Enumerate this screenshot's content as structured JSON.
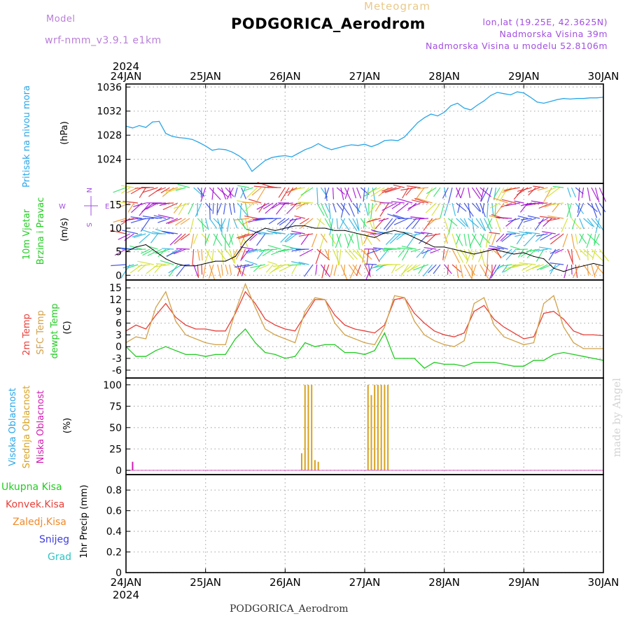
{
  "header": {
    "model_label": "Model",
    "model_name": "wrf-nmm_v3.9.1 e1km",
    "meteogram_label": "Meteogram",
    "station_title": "PODGORICA_Aerodrom",
    "coords_line": "lon,lat (19.25E, 42.3625N)",
    "elevation_line": "Nadmorska Visina 39m",
    "model_elevation_line": "Nadmorska Visina u modelu 52.8106m"
  },
  "footer": {
    "station_title": "PODGORICA_Aerodrom",
    "credit": "made by Angel"
  },
  "colors": {
    "pressure": "#2aa6e8",
    "temp2m": "#e8403a",
    "sfc_temp": "#d2a24a",
    "dewpt": "#22cc22",
    "wind_speed": "#000000",
    "mid_cloud": "#d8a21e",
    "low_cloud": "#d11bb0",
    "high_cloud": "#2aa6e8",
    "grid": "#b4b4b4"
  },
  "chart_data": [
    {
      "type": "line",
      "name": "pressure-panel",
      "ylabel_main": "Pritisak na nivou mora",
      "ylabel_unit": "(hPa)",
      "year_label": "2024",
      "x_tick_labels": [
        "24JAN",
        "25JAN",
        "26JAN",
        "27JAN",
        "28JAN",
        "29JAN",
        "30JAN"
      ],
      "yticks": [
        1024,
        1028,
        1032,
        1036
      ],
      "ylim": [
        1020,
        1036.5
      ],
      "xlim": [
        0,
        144
      ],
      "grid": true,
      "series": [
        {
          "name": "",
          "x": [
            0,
            2,
            4,
            6,
            8,
            10,
            12,
            14,
            16,
            18,
            20,
            22,
            24,
            26,
            28,
            30,
            32,
            34,
            36,
            38,
            40,
            42,
            44,
            46,
            48,
            50,
            52,
            54,
            56,
            58,
            60,
            62,
            64,
            66,
            68,
            70,
            72,
            74,
            76,
            78,
            80,
            82,
            84,
            86,
            88,
            90,
            92,
            94,
            96,
            98,
            100,
            102,
            104,
            106,
            108,
            110,
            112,
            114,
            116,
            118,
            120,
            122,
            124,
            126,
            128,
            130,
            132,
            134,
            136,
            138,
            140,
            142,
            144
          ],
          "values": [
            1029.5,
            1029.2,
            1029.6,
            1029.3,
            1030.2,
            1030.3,
            1028.3,
            1027.8,
            1027.6,
            1027.5,
            1027.3,
            1026.8,
            1026.2,
            1025.5,
            1025.7,
            1025.6,
            1025.2,
            1024.6,
            1023.8,
            1022.0,
            1022.9,
            1023.8,
            1024.3,
            1024.5,
            1024.6,
            1024.4,
            1025.0,
            1025.6,
            1026.0,
            1026.6,
            1026.0,
            1025.6,
            1025.9,
            1026.2,
            1026.4,
            1026.3,
            1026.5,
            1026.1,
            1026.5,
            1027.1,
            1027.2,
            1027.1,
            1027.7,
            1028.9,
            1030.1,
            1030.9,
            1031.5,
            1031.2,
            1031.8,
            1032.9,
            1033.3,
            1032.5,
            1032.2,
            1033.0,
            1033.7,
            1034.6,
            1035.1,
            1034.9,
            1034.7,
            1035.2,
            1035.0,
            1034.3,
            1033.5,
            1033.3,
            1033.6,
            1033.9,
            1034.1,
            1034.0,
            1034.1,
            1034.1,
            1034.2,
            1034.2,
            1034.3
          ]
        }
      ]
    },
    {
      "type": "line",
      "name": "wind-panel",
      "ylabel_main": "10m Vjetar",
      "ylabel_sub": "Brzina i Pravac",
      "ylabel_unit": "(m/s)",
      "compass": {
        "n": "N",
        "s": "S",
        "e": "E",
        "w": "W"
      },
      "yticks": [
        0,
        5,
        10,
        15
      ],
      "ylim": [
        -1,
        19.5
      ],
      "xlim": [
        0,
        144
      ],
      "grid": true,
      "series": [
        {
          "name": "",
          "x": [
            0,
            3,
            6,
            9,
            12,
            15,
            18,
            21,
            24,
            27,
            30,
            33,
            36,
            39,
            42,
            45,
            48,
            51,
            54,
            57,
            60,
            63,
            66,
            69,
            72,
            75,
            78,
            81,
            84,
            87,
            90,
            93,
            96,
            99,
            102,
            105,
            108,
            111,
            114,
            117,
            120,
            123,
            126,
            129,
            132,
            135,
            138,
            141,
            144
          ],
          "values": [
            5,
            6,
            6.5,
            5,
            3.5,
            2.5,
            2,
            2,
            2.5,
            3,
            3,
            4,
            7,
            9,
            10,
            9.5,
            10,
            10.5,
            10.5,
            10,
            10,
            9.5,
            9.5,
            9,
            8.5,
            8,
            9,
            9.5,
            9,
            8,
            7,
            6,
            6,
            5.5,
            5,
            4.5,
            5,
            5.5,
            5,
            4.5,
            4.8,
            4,
            3.5,
            1.5,
            0.8,
            1.5,
            2,
            2.5,
            2
          ]
        }
      ],
      "barb_colormap": [
        "#a000d0",
        "#2a40e0",
        "#20b0e0",
        "#20e060",
        "#d0e020",
        "#f09020",
        "#e02020"
      ]
    },
    {
      "type": "line",
      "name": "temperature-panel",
      "ylabel_lines": [
        "2m Temp",
        "SFC Temp",
        "dewpt Temp"
      ],
      "ylabel_unit": "(C)",
      "yticks": [
        -6,
        -3,
        0,
        3,
        6,
        9,
        12,
        15
      ],
      "ylim": [
        -8,
        17
      ],
      "xlim": [
        0,
        144
      ],
      "grid": true,
      "series": [
        {
          "name": "2m Temp",
          "x": [
            0,
            3,
            6,
            9,
            12,
            15,
            18,
            21,
            24,
            27,
            30,
            33,
            36,
            39,
            42,
            45,
            48,
            51,
            54,
            57,
            60,
            63,
            66,
            69,
            72,
            75,
            78,
            81,
            84,
            87,
            90,
            93,
            96,
            99,
            102,
            105,
            108,
            111,
            114,
            117,
            120,
            123,
            126,
            129,
            132,
            135,
            138,
            141,
            144
          ],
          "values": [
            4,
            5.5,
            4.5,
            8,
            11,
            7.5,
            5.5,
            4.5,
            4.5,
            4,
            4,
            8.5,
            14,
            11,
            7,
            5.5,
            4.5,
            4,
            8,
            12,
            12,
            8,
            5.5,
            4.5,
            4,
            3.5,
            5.5,
            12,
            12.5,
            8.5,
            6,
            4,
            3,
            2.5,
            3.5,
            9,
            10.5,
            7,
            5,
            3.5,
            2,
            2.5,
            8.5,
            9,
            7,
            4,
            3,
            3,
            2.8
          ]
        },
        {
          "name": "SFC Temp",
          "x": [
            0,
            3,
            6,
            9,
            12,
            15,
            18,
            21,
            24,
            27,
            30,
            33,
            36,
            39,
            42,
            45,
            48,
            51,
            54,
            57,
            60,
            63,
            66,
            69,
            72,
            75,
            78,
            81,
            84,
            87,
            90,
            93,
            96,
            99,
            102,
            105,
            108,
            111,
            114,
            117,
            120,
            123,
            126,
            129,
            132,
            135,
            138,
            141,
            144
          ],
          "values": [
            1,
            2.5,
            2,
            10,
            14,
            6.5,
            3,
            2,
            1,
            0.5,
            0.5,
            9,
            16,
            10,
            4.5,
            3,
            2,
            1,
            9,
            12.5,
            12,
            6,
            3,
            2,
            1,
            0.5,
            5,
            13,
            12.5,
            6.5,
            3,
            1.5,
            0.5,
            0,
            1.5,
            11,
            12.5,
            5.5,
            2.5,
            1.5,
            0.5,
            1,
            11,
            13,
            5,
            1,
            -0.5,
            -0.5,
            -0.5
          ]
        },
        {
          "name": "dewpt Temp",
          "x": [
            0,
            3,
            6,
            9,
            12,
            15,
            18,
            21,
            24,
            27,
            30,
            33,
            36,
            39,
            42,
            45,
            48,
            51,
            54,
            57,
            60,
            63,
            66,
            69,
            72,
            75,
            78,
            81,
            84,
            87,
            90,
            93,
            96,
            99,
            102,
            105,
            108,
            111,
            114,
            117,
            120,
            123,
            126,
            129,
            132,
            135,
            138,
            141,
            144
          ],
          "values": [
            0,
            -2.5,
            -2.5,
            -1,
            0,
            -1,
            -2,
            -2,
            -2.5,
            -2,
            -2,
            2,
            4.5,
            1,
            -1.5,
            -2,
            -3,
            -2.5,
            1,
            0,
            0.5,
            0.5,
            -1.5,
            -1.5,
            -2,
            -1,
            3.5,
            -3,
            -3,
            -3,
            -5.5,
            -4,
            -4.5,
            -4.5,
            -5,
            -4,
            -4,
            -4,
            -4.5,
            -5,
            -5,
            -3.5,
            -3.5,
            -2,
            -1.5,
            -2,
            -2.5,
            -3,
            -3.5
          ]
        }
      ]
    },
    {
      "type": "bar",
      "name": "cloud-panel",
      "ylabel_lines": [
        "Visoka Oblacnost",
        "Srednja Oblacnost",
        "Niska Oblacnost"
      ],
      "ylabel_unit": "(%)",
      "yticks": [
        0,
        25,
        50,
        75,
        100
      ],
      "ylim": [
        -5,
        108
      ],
      "xlim": [
        0,
        144
      ],
      "grid": true,
      "series": [
        {
          "name": "Srednja Oblacnost",
          "x": [
            53,
            54,
            55,
            56,
            57,
            58,
            73,
            74,
            75,
            76,
            77,
            78,
            79
          ],
          "values": [
            20,
            100,
            100,
            100,
            12,
            10,
            100,
            88,
            100,
            100,
            100,
            100,
            100
          ]
        },
        {
          "name": "Niska Oblacnost",
          "x": [
            2
          ],
          "values": [
            10
          ]
        }
      ]
    },
    {
      "type": "bar",
      "name": "precip-panel",
      "legend": [
        "Ukupna Kisa",
        "Konvek.Kisa",
        "Zaledj.Kisa",
        "Snijeg",
        "Grad"
      ],
      "legend_colors": [
        "#22cc22",
        "#e8403a",
        "#f08a2a",
        "#3c3ce0",
        "#2ec4c4"
      ],
      "ylabel_unit": "1hr Precip (mm)",
      "yticks": [
        0,
        0.2,
        0.4,
        0.6,
        0.8
      ],
      "ylim": [
        0,
        0.95
      ],
      "year_label": "2024",
      "x_tick_labels": [
        "24JAN",
        "25JAN",
        "26JAN",
        "27JAN",
        "28JAN",
        "29JAN",
        "30JAN"
      ],
      "xlim": [
        0,
        144
      ],
      "grid": true,
      "series": []
    }
  ]
}
